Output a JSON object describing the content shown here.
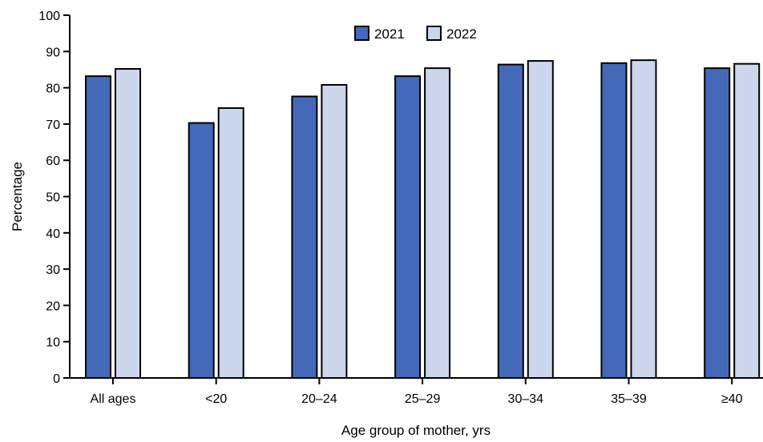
{
  "chart_data": {
    "type": "bar",
    "title": "",
    "xlabel": "Age group of mother, yrs",
    "ylabel": "Percentage",
    "ylim": [
      0,
      100
    ],
    "yticks": [
      "0",
      "10",
      "20",
      "30",
      "40",
      "50",
      "60",
      "70",
      "80",
      "90",
      "100"
    ],
    "categories": [
      "All ages",
      "<20",
      "20–24",
      "25–29",
      "30–34",
      "35–39",
      "≥40"
    ],
    "series": [
      {
        "name": "2021",
        "color": "#4469b8",
        "values": [
          83.2,
          70.3,
          77.6,
          83.2,
          86.4,
          86.8,
          85.4
        ]
      },
      {
        "name": "2022",
        "color": "#ccd6ec",
        "values": [
          85.2,
          74.4,
          80.8,
          85.4,
          87.4,
          87.6,
          86.6
        ]
      }
    ],
    "grid": false,
    "legend_position": "top-center"
  }
}
